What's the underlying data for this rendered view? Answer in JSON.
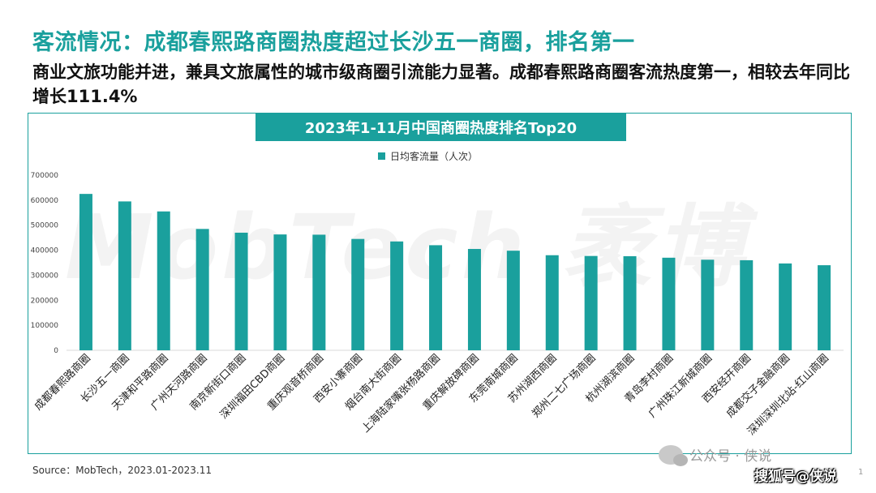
{
  "slide": {
    "headline": "客流情况：成都春熙路商圈热度超过长沙五一商圈，排名第一",
    "subhead": "商业文旅功能并进，兼具文旅属性的城市级商圈引流能力显著。成都春熙路商圈客流热度第一，相较去年同比增长111.4%",
    "source": "Source：MobTech，2023.01-2023.11",
    "page_number": "1"
  },
  "watermarks": {
    "brand": "MobTech 袤博",
    "wechat": "公众号 · 侠说",
    "sohu": "搜狐号@侠说"
  },
  "colors": {
    "accent": "#1aa09d",
    "bar": "#1aa09d"
  },
  "chart_data": {
    "type": "bar",
    "title": "2023年1-11月中国商圈热度排名Top20",
    "categories": [
      "成都春熙路商圈",
      "长沙五一商圈",
      "天津和平路商圈",
      "广州天河路商圈",
      "南京新街口商圈",
      "深圳福田CBD商圈",
      "重庆观音桥商圈",
      "西安小寨商圈",
      "烟台南大街商圈",
      "上海陆家嘴张杨路商圈",
      "重庆解放碑商圈",
      "东莞南城商圈",
      "苏州湖西商圈",
      "郑州二七广场商圈",
      "杭州湖滨商圈",
      "青岛李村商圈",
      "广州珠江新城商圈",
      "西安经开商圈",
      "成都交子金融商圈",
      "深圳深圳北站-红山商圈"
    ],
    "series": [
      {
        "name": "日均客流量（人次）",
        "values": [
          625000,
          595000,
          555000,
          485000,
          470000,
          463000,
          462000,
          445000,
          435000,
          420000,
          405000,
          398000,
          380000,
          377000,
          376000,
          370000,
          362000,
          360000,
          347000,
          340000
        ]
      }
    ],
    "yticks": [
      "0",
      "100000",
      "200000",
      "300000",
      "400000",
      "500000",
      "600000",
      "700000"
    ],
    "ylim": [
      0,
      700000
    ],
    "xlabel": "",
    "ylabel": "",
    "grid": false,
    "legend_position": "top-center"
  }
}
